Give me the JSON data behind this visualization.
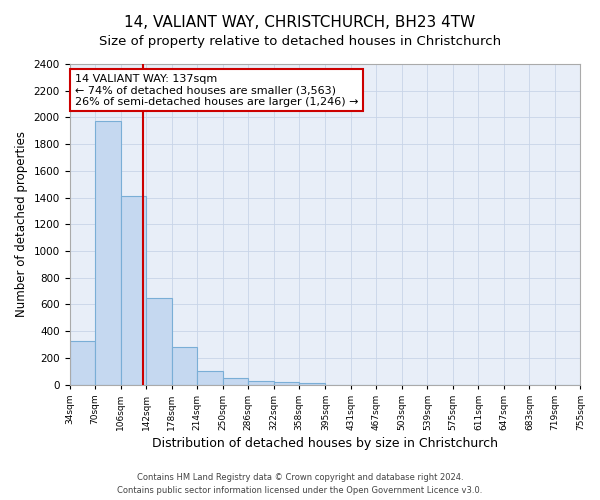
{
  "title": "14, VALIANT WAY, CHRISTCHURCH, BH23 4TW",
  "subtitle": "Size of property relative to detached houses in Christchurch",
  "xlabel": "Distribution of detached houses by size in Christchurch",
  "ylabel": "Number of detached properties",
  "bin_edges": [
    34,
    70,
    106,
    142,
    178,
    214,
    250,
    286,
    322,
    358,
    395,
    431,
    467,
    503,
    539,
    575,
    611,
    647,
    683,
    719,
    755
  ],
  "bar_heights": [
    325,
    1975,
    1410,
    650,
    280,
    105,
    50,
    30,
    20,
    15,
    0,
    0,
    0,
    0,
    0,
    0,
    0,
    0,
    0,
    0
  ],
  "bar_color": "#c5d8f0",
  "bar_edge_color": "#7aaed6",
  "vline_x": 137,
  "vline_color": "#cc0000",
  "annotation_line1": "14 VALIANT WAY: 137sqm",
  "annotation_line2": "← 74% of detached houses are smaller (3,563)",
  "annotation_line3": "26% of semi-detached houses are larger (1,246) →",
  "annotation_box_color": "#ffffff",
  "annotation_box_edge_color": "#cc0000",
  "ylim": [
    0,
    2400
  ],
  "yticks": [
    0,
    200,
    400,
    600,
    800,
    1000,
    1200,
    1400,
    1600,
    1800,
    2000,
    2200,
    2400
  ],
  "tick_labels": [
    "34sqm",
    "70sqm",
    "106sqm",
    "142sqm",
    "178sqm",
    "214sqm",
    "250sqm",
    "286sqm",
    "322sqm",
    "358sqm",
    "395sqm",
    "431sqm",
    "467sqm",
    "503sqm",
    "539sqm",
    "575sqm",
    "611sqm",
    "647sqm",
    "683sqm",
    "719sqm",
    "755sqm"
  ],
  "grid_color": "#c8d4e8",
  "background_color": "#e8eef8",
  "footer_text": "Contains HM Land Registry data © Crown copyright and database right 2024.\nContains public sector information licensed under the Open Government Licence v3.0.",
  "title_fontsize": 11,
  "subtitle_fontsize": 9.5,
  "xlabel_fontsize": 9,
  "ylabel_fontsize": 8.5,
  "annotation_fontsize": 8,
  "footer_fontsize": 6
}
